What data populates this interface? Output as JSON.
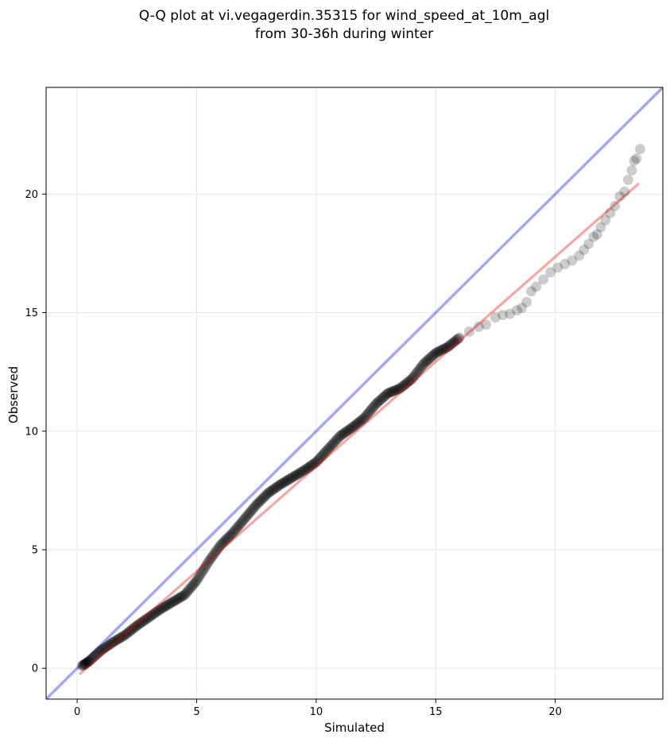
{
  "chart_data": {
    "type": "scatter",
    "title": "Q-Q plot at vi.vegagerdin.35315 for wind_speed_at_10m_agl",
    "subtitle": "from 30-36h during winter",
    "xlabel": "Simulated",
    "ylabel": "Observed",
    "xlim": [
      -1.3,
      24.5
    ],
    "ylim": [
      -1.3,
      24.5
    ],
    "xticks": [
      0,
      5,
      10,
      15,
      20
    ],
    "yticks": [
      0,
      5,
      10,
      15,
      20
    ],
    "grid": true,
    "colors": {
      "points": "#000000",
      "reference_line": "#0000dd",
      "fit_line": "#dd0000"
    },
    "reference_line": {
      "x": [
        -1.3,
        24.5
      ],
      "y": [
        -1.3,
        24.5
      ]
    },
    "fit_line": {
      "x": [
        0.1,
        23.5
      ],
      "y": [
        -0.25,
        20.45
      ]
    },
    "points_dense_curve": {
      "x": [
        0.2,
        0.5,
        1.0,
        1.5,
        2.0,
        2.5,
        3.0,
        3.5,
        4.0,
        4.5,
        5.0,
        5.5,
        6.0,
        6.5,
        7.0,
        7.5,
        8.0,
        8.5,
        9.0,
        9.5,
        10.0,
        10.5,
        11.0,
        11.5,
        12.0,
        12.5,
        13.0,
        13.5,
        14.0,
        14.5,
        15.0,
        15.5,
        16.0
      ],
      "y": [
        0.1,
        0.3,
        0.75,
        1.1,
        1.4,
        1.8,
        2.15,
        2.5,
        2.8,
        3.1,
        3.7,
        4.5,
        5.2,
        5.7,
        6.3,
        6.9,
        7.4,
        7.75,
        8.05,
        8.35,
        8.7,
        9.25,
        9.8,
        10.15,
        10.55,
        11.15,
        11.6,
        11.8,
        12.2,
        12.85,
        13.3,
        13.55,
        13.95
      ]
    },
    "points_sparse": {
      "x": [
        16.4,
        16.8,
        17.1,
        17.5,
        17.8,
        18.1,
        18.4,
        18.6,
        18.8,
        19.0,
        19.2,
        19.5,
        19.8,
        20.1,
        20.4,
        20.7,
        21.0,
        21.2,
        21.4,
        21.6,
        21.75,
        21.9,
        22.1,
        22.3,
        22.5,
        22.7,
        22.9,
        23.05,
        23.2,
        23.3,
        23.4,
        23.55
      ],
      "y": [
        14.2,
        14.4,
        14.5,
        14.8,
        14.9,
        14.95,
        15.1,
        15.2,
        15.45,
        15.9,
        16.1,
        16.4,
        16.7,
        16.9,
        17.05,
        17.2,
        17.4,
        17.65,
        17.9,
        18.2,
        18.3,
        18.6,
        18.9,
        19.2,
        19.5,
        19.9,
        20.1,
        20.6,
        21.0,
        21.4,
        21.5,
        21.9
      ]
    }
  }
}
